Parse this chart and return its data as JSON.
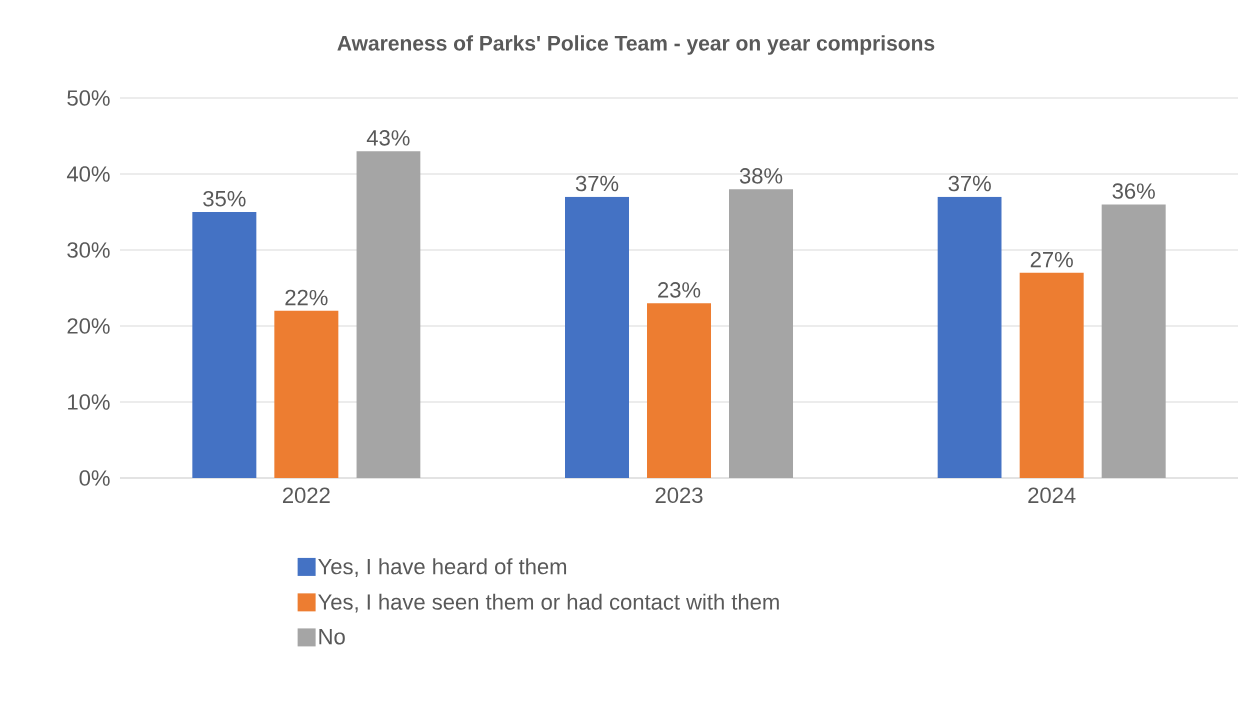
{
  "chart_data": {
    "type": "bar",
    "title": "Awareness of Parks' Police Team - year on year comprisons",
    "categories": [
      "2022",
      "2023",
      "2024"
    ],
    "series": [
      {
        "name": "Yes, I have heard of them",
        "color": "#4472c4",
        "values": [
          35,
          37,
          37
        ],
        "value_labels": [
          "35%",
          "37%",
          "37%"
        ]
      },
      {
        "name": "Yes, I have seen them or had contact with them",
        "color": "#ed7d31",
        "values": [
          22,
          23,
          27
        ],
        "value_labels": [
          "22%",
          "23%",
          "27%"
        ]
      },
      {
        "name": "No",
        "color": "#a5a5a5",
        "values": [
          43,
          38,
          36
        ],
        "value_labels": [
          "43%",
          "38%",
          "36%"
        ]
      }
    ],
    "ylim": [
      0,
      50
    ],
    "yticks": [
      {
        "value": 0,
        "label": "0%"
      },
      {
        "value": 10,
        "label": "10%"
      },
      {
        "value": 20,
        "label": "20%"
      },
      {
        "value": 30,
        "label": "30%"
      },
      {
        "value": 40,
        "label": "40%"
      },
      {
        "value": 50,
        "label": "50%"
      }
    ],
    "grid": "y",
    "legend": "bottom"
  }
}
